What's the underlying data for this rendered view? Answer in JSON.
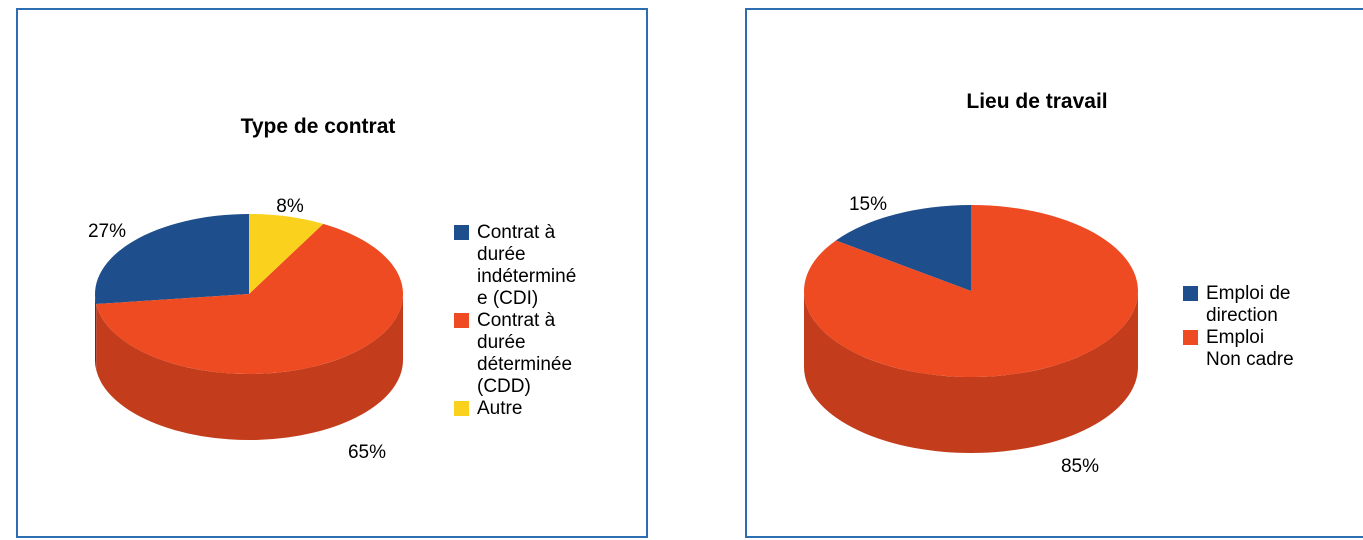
{
  "chart_data": [
    {
      "type": "pie",
      "title": "Type de contrat",
      "categories": [
        "Contrat à\ndurée\nindéterminé\ne (CDI)",
        "Contrat à\ndurée\ndéterminée\n(CDD)",
        "Autre"
      ],
      "values": [
        27,
        65,
        8
      ],
      "data_labels": [
        "27%",
        "65%",
        "8%"
      ],
      "colors": [
        "#1f4e8c",
        "#ee4b22",
        "#fad21e"
      ],
      "legend_position": "right",
      "style": "3d"
    },
    {
      "type": "pie",
      "title": "Lieu de travail",
      "categories": [
        "Emploi de\ndirection",
        "Emploi\nNon cadre"
      ],
      "values": [
        15,
        85
      ],
      "data_labels": [
        "15%",
        "85%"
      ],
      "colors": [
        "#1f4e8c",
        "#ee4b22"
      ],
      "legend_position": "right",
      "style": "3d"
    }
  ]
}
